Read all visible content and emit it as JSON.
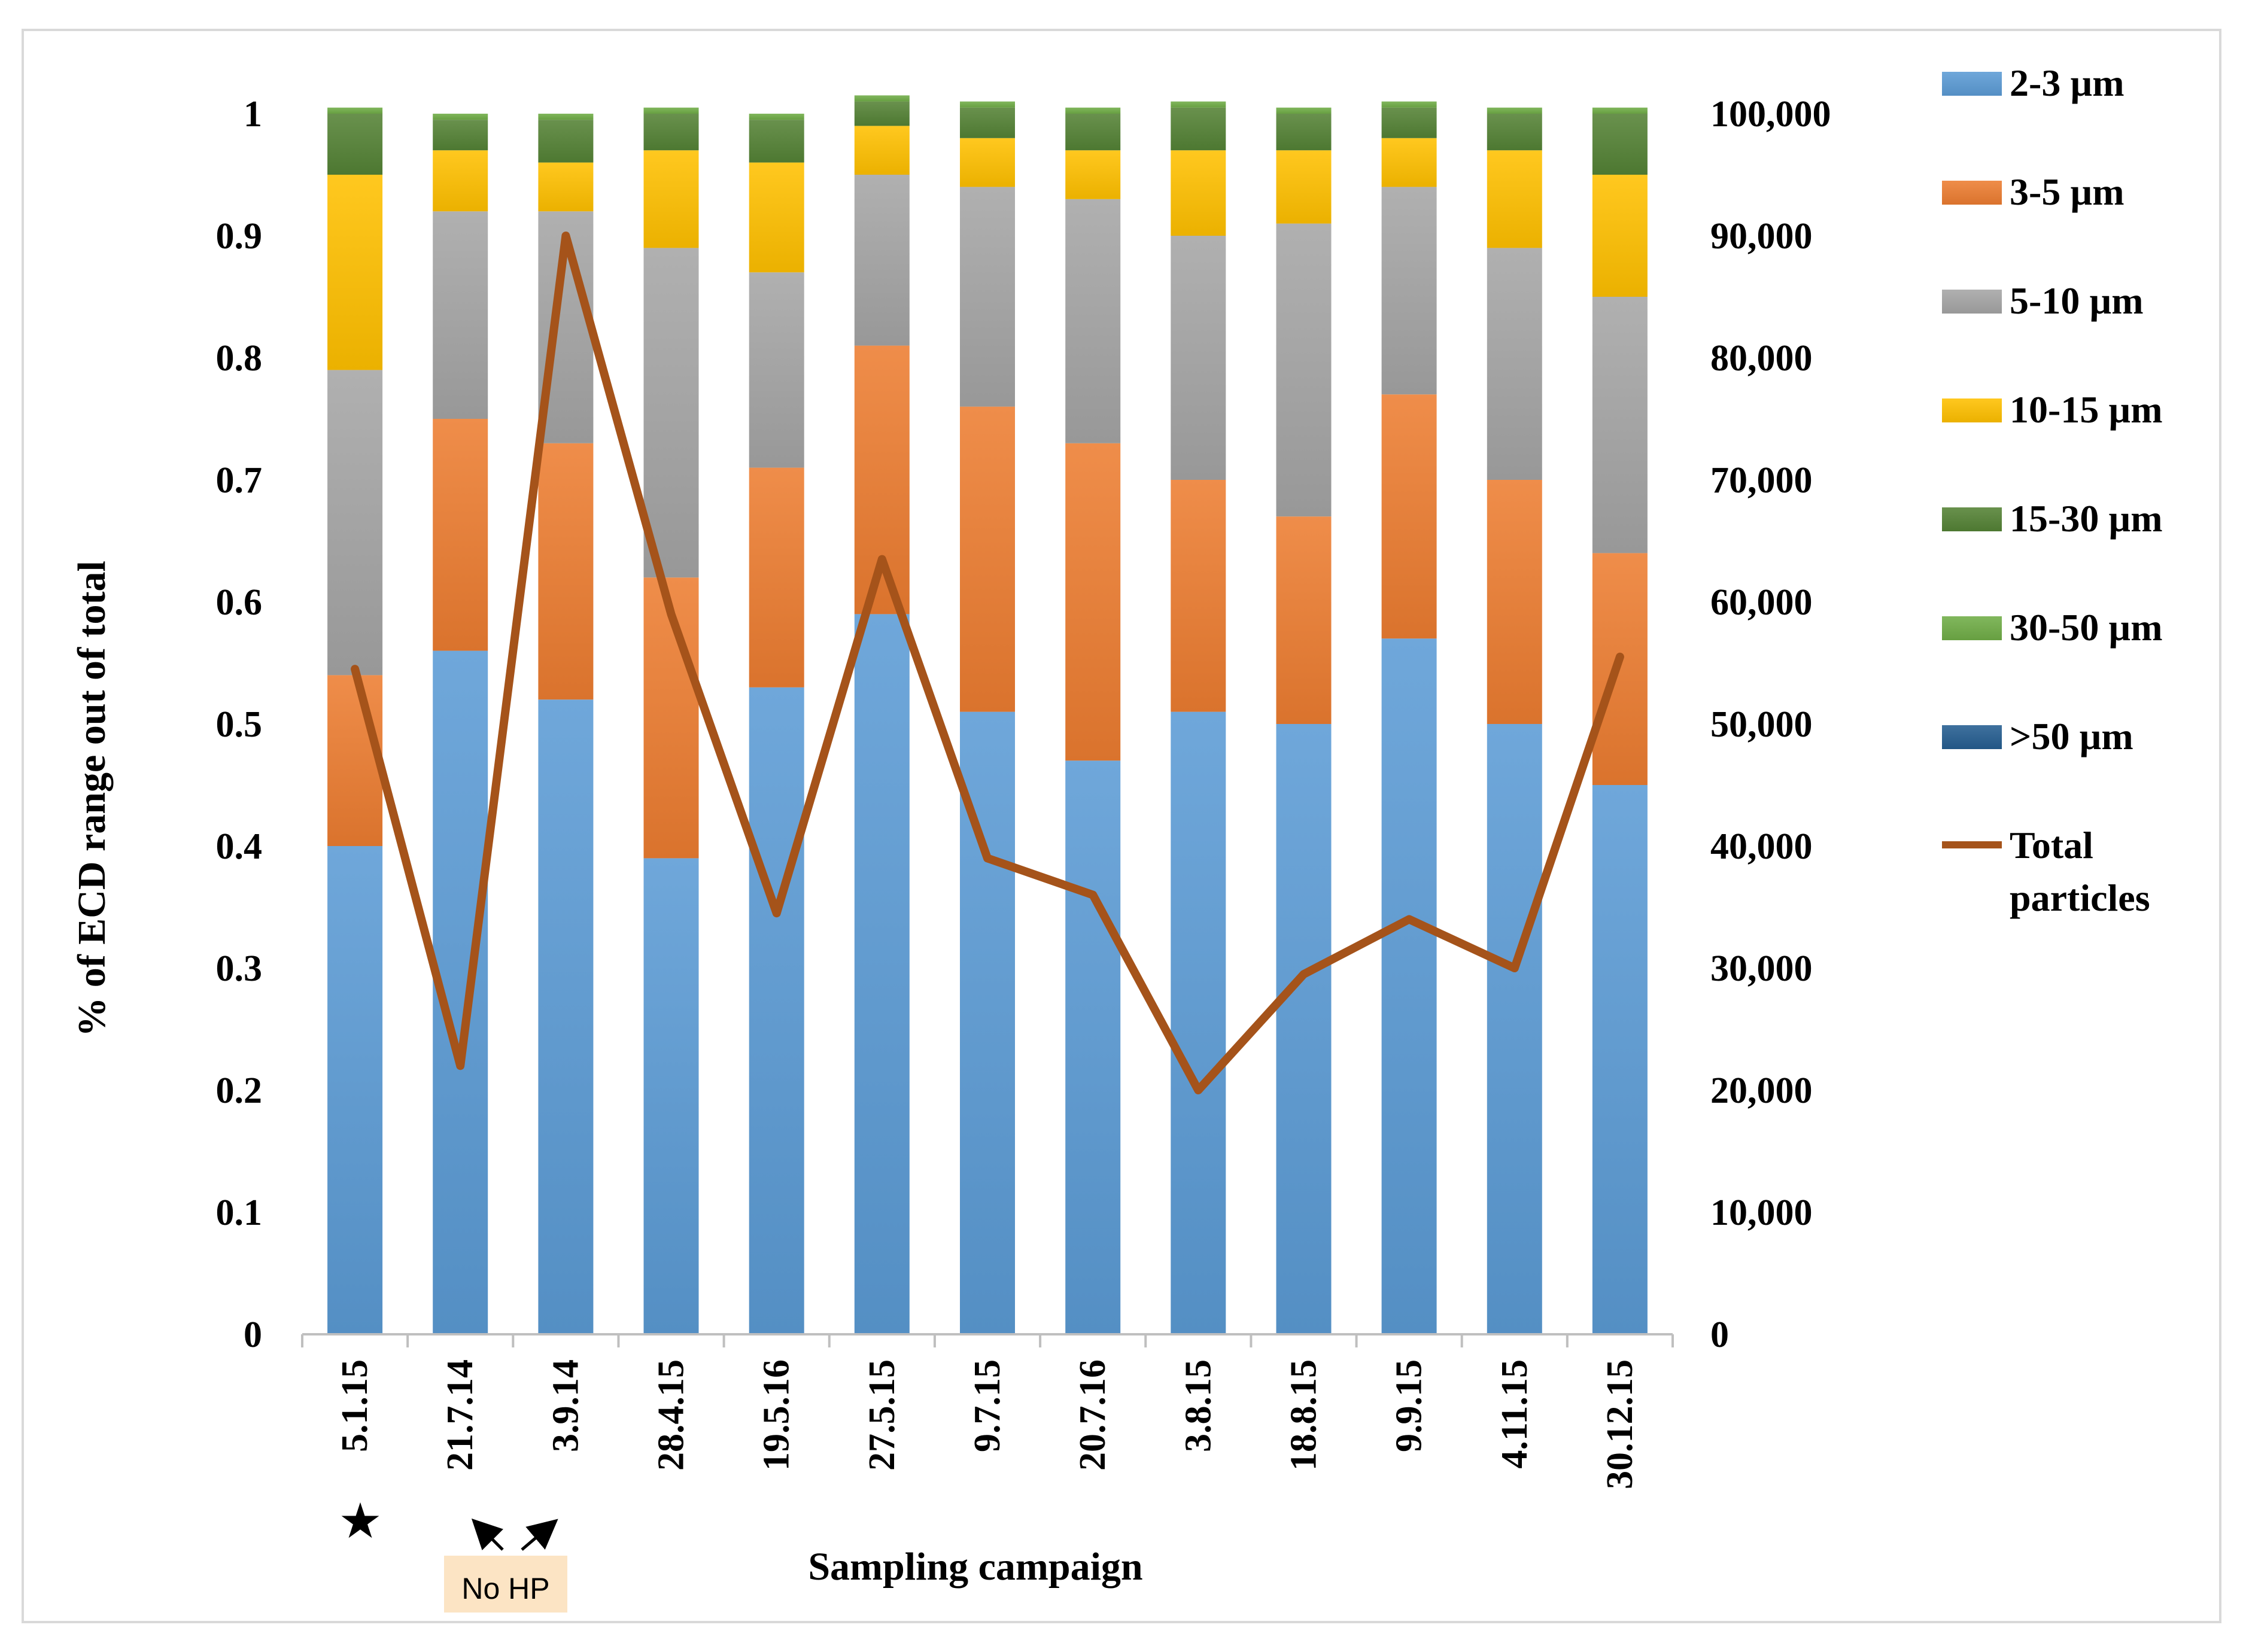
{
  "chart_data": {
    "type": "bar",
    "stacked": true,
    "categories": [
      "5.1.15",
      "21.7.14",
      "3.9.14",
      "28.4.15",
      "19.5.16",
      "27.5.15",
      "9.7.15",
      "20.7.16",
      "3.8.15",
      "18.8.15",
      "9.9.15",
      "4.11.15",
      "30.12.15"
    ],
    "series": [
      {
        "name": "2-3 µm",
        "color": "#5b9bd5",
        "values": [
          0.4,
          0.56,
          0.52,
          0.39,
          0.53,
          0.59,
          0.51,
          0.47,
          0.51,
          0.5,
          0.57,
          0.5,
          0.45
        ]
      },
      {
        "name": "3-5 µm",
        "color": "#ed7d31",
        "values": [
          0.14,
          0.19,
          0.21,
          0.23,
          0.18,
          0.22,
          0.25,
          0.26,
          0.19,
          0.17,
          0.2,
          0.2,
          0.19
        ]
      },
      {
        "name": "5-10 µm",
        "color": "#a5a5a5",
        "values": [
          0.25,
          0.17,
          0.19,
          0.27,
          0.16,
          0.14,
          0.18,
          0.2,
          0.2,
          0.24,
          0.17,
          0.19,
          0.21
        ]
      },
      {
        "name": "10-15 µm",
        "color": "#ffc000",
        "values": [
          0.16,
          0.05,
          0.04,
          0.08,
          0.09,
          0.04,
          0.04,
          0.04,
          0.07,
          0.06,
          0.04,
          0.08,
          0.1
        ]
      },
      {
        "name": "15-30 µm",
        "color": "#548235",
        "values": [
          0.05,
          0.025,
          0.035,
          0.03,
          0.035,
          0.02,
          0.025,
          0.03,
          0.035,
          0.03,
          0.025,
          0.03,
          0.05
        ]
      },
      {
        "name": "30-50 µm",
        "color": "#70ad47",
        "values": [
          0.005,
          0.005,
          0.005,
          0.005,
          0.005,
          0.005,
          0.005,
          0.005,
          0.005,
          0.005,
          0.005,
          0.005,
          0.005
        ]
      },
      {
        "name": ">50 µm",
        "color": "#255e91",
        "values": [
          0,
          0,
          0,
          0,
          0,
          0,
          0,
          0,
          0,
          0,
          0,
          0,
          0
        ]
      }
    ],
    "line_series": {
      "name": "Total particles",
      "color": "#a5531a",
      "axis": "right",
      "values": [
        54500,
        22000,
        90000,
        59000,
        34500,
        63500,
        39000,
        36000,
        20000,
        29500,
        34000,
        30000,
        55500
      ]
    },
    "ylabel": "% of ECD range out of total",
    "xlabel": "Sampling campaign",
    "ylim": [
      0,
      1
    ],
    "y_ticks": [
      "0",
      "0.1",
      "0.2",
      "0.3",
      "0.4",
      "0.5",
      "0.6",
      "0.7",
      "0.8",
      "0.9",
      "1"
    ],
    "y2lim": [
      0,
      100000
    ],
    "y2_ticks": [
      "0",
      "10,000",
      "20,000",
      "30,000",
      "40,000",
      "50,000",
      "60,000",
      "70,000",
      "80,000",
      "90,000",
      "100,000"
    ],
    "legend": [
      "2-3 µm",
      "3-5 µm",
      "5-10 µm",
      "10-15 µm",
      "15-30 µm",
      "30-50 µm",
      ">50 µm",
      "Total particles"
    ],
    "legend_position": "right"
  },
  "annotations": {
    "star": "★",
    "note": "No HP"
  }
}
